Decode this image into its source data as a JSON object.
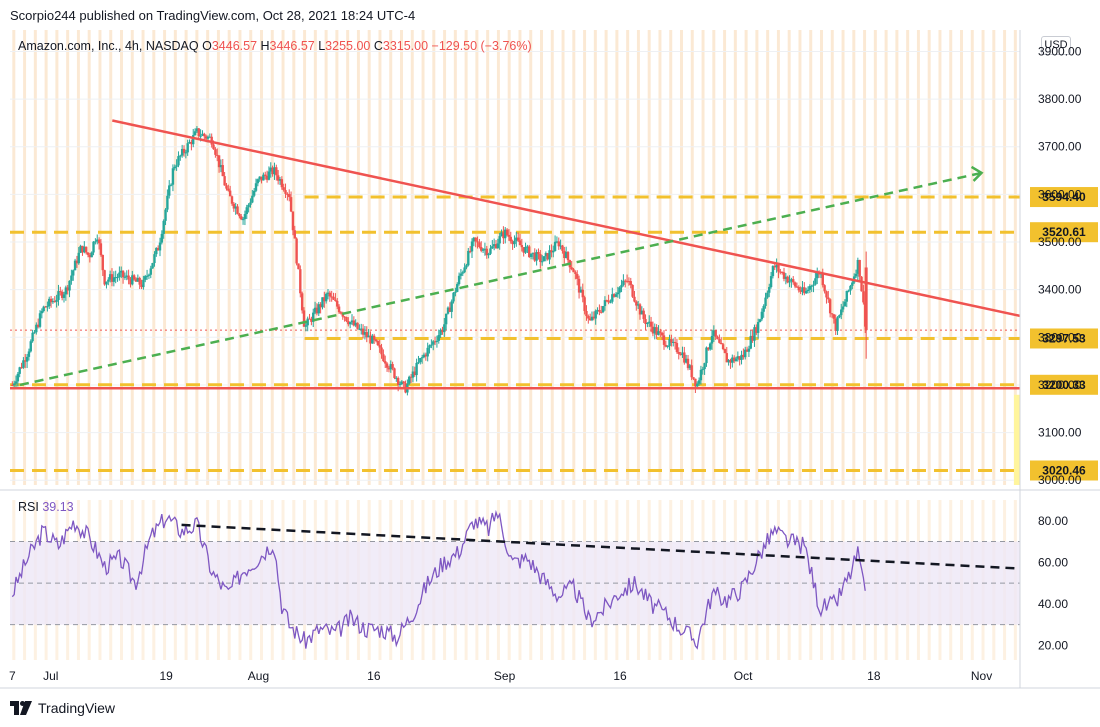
{
  "publisher_line": "Scorpio244 published on TradingView.com, Oct 28, 2021 18:24 UTC-4",
  "footer_brand": "TradingView",
  "currency_label": "USD",
  "colors": {
    "up": "#26a69a",
    "down": "#ef5350",
    "trend_red": "#ef5350",
    "level_yellow": "#f2c12e",
    "trend_green": "#4caf50",
    "rsi_line": "#7e57c2",
    "rsi_band": "#ede7f6",
    "session_stripe": "#fbe7cf",
    "price_dotted": "#ef5350"
  },
  "chart_data": [
    {
      "type": "candlestick",
      "legend": {
        "symbol": "Amazon.com, Inc., 4h, NASDAQ",
        "open_label": "O",
        "open": "3446.57",
        "high_label": "H",
        "high": "3446.57",
        "low_label": "L",
        "low": "3255.00",
        "close_label": "C",
        "close": "3315.00",
        "change": "−129.50 (−3.76%)"
      },
      "y_ticks": [
        "3900.00",
        "3800.00",
        "3700.00",
        "3600.00",
        "3500.00",
        "3400.00",
        "3300.00",
        "3200.00",
        "3100.00",
        "3000.00"
      ],
      "y_tick_values": [
        3900,
        3800,
        3700,
        3600,
        3500,
        3400,
        3300,
        3200,
        3100,
        3000
      ],
      "ylim": [
        2990,
        3945
      ],
      "x_ticks": [
        "7",
        "Jul",
        "19",
        "Aug",
        "16",
        "Sep",
        "16",
        "Oct",
        "18",
        "Nov"
      ],
      "x_tick_days": [
        -1,
        4,
        19,
        31,
        46,
        63,
        78,
        94,
        111,
        125
      ],
      "xlim_days": [
        -1.3,
        130
      ],
      "last_price": 3315.0,
      "level_lines": [
        {
          "label": "3594.40",
          "value": 3594.4,
          "from_day": 37
        },
        {
          "label": "3520.61",
          "value": 3520.61,
          "from_day": -1.3
        },
        {
          "label": "3297.53",
          "value": 3297.53,
          "from_day": 37
        },
        {
          "label": "3200.33",
          "value": 3200.33,
          "from_day": -1.3
        },
        {
          "label": "3020.46",
          "value": 3020.46,
          "from_day": -1.3
        }
      ],
      "trendlines": [
        {
          "name": "resistance",
          "style": "solid",
          "points": [
            [
              12,
              3755
            ],
            [
              130,
              3345
            ]
          ]
        },
        {
          "name": "support",
          "style": "solid",
          "points": [
            [
              -1.3,
              3193
            ],
            [
              130,
              3193
            ]
          ]
        },
        {
          "name": "uptrend",
          "style": "dashed",
          "points": [
            [
              0,
              3200
            ],
            [
              125,
              3645
            ]
          ]
        }
      ],
      "price_path": [
        [
          -1,
          3200
        ],
        [
          1,
          3270
        ],
        [
          3,
          3360
        ],
        [
          6,
          3400
        ],
        [
          8,
          3490
        ],
        [
          9,
          3470
        ],
        [
          10,
          3520
        ],
        [
          11,
          3420
        ],
        [
          13,
          3430
        ],
        [
          16,
          3410
        ],
        [
          18,
          3490
        ],
        [
          20,
          3660
        ],
        [
          23,
          3730
        ],
        [
          25,
          3715
        ],
        [
          27,
          3600
        ],
        [
          29,
          3550
        ],
        [
          31,
          3630
        ],
        [
          33,
          3650
        ],
        [
          35,
          3600
        ],
        [
          37,
          3320
        ],
        [
          40,
          3390
        ],
        [
          43,
          3330
        ],
        [
          46,
          3290
        ],
        [
          48,
          3240
        ],
        [
          50,
          3190
        ],
        [
          52,
          3250
        ],
        [
          55,
          3320
        ],
        [
          57,
          3420
        ],
        [
          59,
          3500
        ],
        [
          61,
          3480
        ],
        [
          63,
          3520
        ],
        [
          66,
          3480
        ],
        [
          68,
          3460
        ],
        [
          70,
          3500
        ],
        [
          72,
          3440
        ],
        [
          74,
          3330
        ],
        [
          77,
          3390
        ],
        [
          79,
          3420
        ],
        [
          81,
          3340
        ],
        [
          84,
          3290
        ],
        [
          86,
          3270
        ],
        [
          88,
          3200
        ],
        [
          90,
          3310
        ],
        [
          92,
          3250
        ],
        [
          94,
          3260
        ],
        [
          96,
          3330
        ],
        [
          98,
          3450
        ],
        [
          100,
          3420
        ],
        [
          102,
          3390
        ],
        [
          104,
          3440
        ],
        [
          106,
          3320
        ],
        [
          108,
          3410
        ],
        [
          109,
          3460
        ],
        [
          110,
          3315
        ]
      ],
      "session_breaks": "alternating weekly shading"
    },
    {
      "type": "line",
      "name": "RSI",
      "legend": {
        "label": "RSI",
        "value": "39.13"
      },
      "y_ticks": [
        "80.00",
        "60.00",
        "40.00",
        "20.00"
      ],
      "y_tick_values": [
        80,
        60,
        40,
        20
      ],
      "ylim": [
        13,
        90
      ],
      "band": [
        30,
        70
      ],
      "midline": 50,
      "trendline": {
        "style": "dashed",
        "points": [
          [
            21,
            78
          ],
          [
            130,
            57
          ]
        ]
      },
      "values": [
        [
          -1,
          45
        ],
        [
          1,
          62
        ],
        [
          3,
          75
        ],
        [
          5,
          68
        ],
        [
          7,
          80
        ],
        [
          9,
          72
        ],
        [
          11,
          58
        ],
        [
          13,
          62
        ],
        [
          15,
          50
        ],
        [
          17,
          72
        ],
        [
          19,
          82
        ],
        [
          21,
          75
        ],
        [
          23,
          78
        ],
        [
          25,
          55
        ],
        [
          27,
          45
        ],
        [
          29,
          56
        ],
        [
          31,
          62
        ],
        [
          33,
          70
        ],
        [
          34,
          40
        ],
        [
          35,
          30
        ],
        [
          37,
          22
        ],
        [
          39,
          28
        ],
        [
          41,
          26
        ],
        [
          43,
          33
        ],
        [
          45,
          28
        ],
        [
          47,
          28
        ],
        [
          49,
          24
        ],
        [
          51,
          35
        ],
        [
          53,
          50
        ],
        [
          55,
          60
        ],
        [
          57,
          65
        ],
        [
          59,
          80
        ],
        [
          61,
          76
        ],
        [
          62,
          85
        ],
        [
          64,
          60
        ],
        [
          66,
          62
        ],
        [
          68,
          52
        ],
        [
          70,
          44
        ],
        [
          72,
          48
        ],
        [
          74,
          32
        ],
        [
          76,
          38
        ],
        [
          78,
          46
        ],
        [
          80,
          50
        ],
        [
          82,
          40
        ],
        [
          84,
          35
        ],
        [
          86,
          28
        ],
        [
          88,
          22
        ],
        [
          90,
          45
        ],
        [
          92,
          42
        ],
        [
          94,
          48
        ],
        [
          96,
          63
        ],
        [
          98,
          75
        ],
        [
          100,
          70
        ],
        [
          102,
          68
        ],
        [
          104,
          38
        ],
        [
          106,
          40
        ],
        [
          108,
          55
        ],
        [
          109,
          65
        ],
        [
          110,
          39
        ]
      ]
    }
  ]
}
